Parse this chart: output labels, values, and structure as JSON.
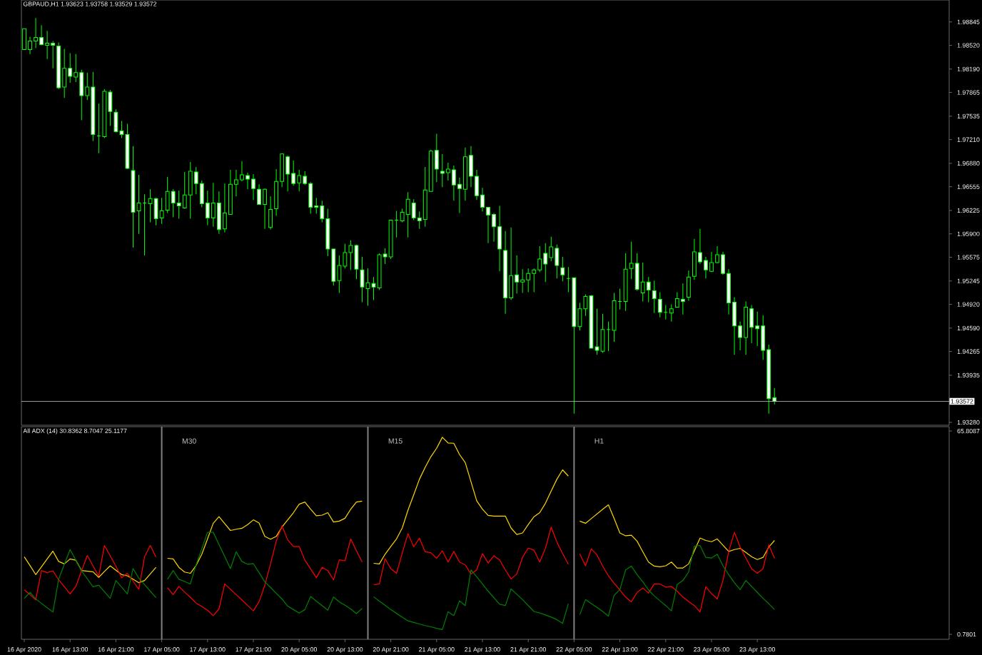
{
  "chart_data": [
    {
      "type": "candlestick",
      "title": "GBPAUD,H1  1.93623 1.93758 1.93529 1.93572",
      "color": "#00ff00",
      "categories": [
        null,
        null,
        null,
        null,
        null,
        null,
        null,
        null,
        null,
        null,
        null,
        null,
        null,
        null,
        null,
        null,
        null,
        null,
        null,
        null,
        null,
        null,
        null,
        null,
        null,
        null,
        null,
        null,
        null,
        null,
        null,
        null,
        null,
        null,
        null,
        null,
        null,
        null,
        null,
        null,
        null,
        null,
        null,
        null,
        null,
        null,
        null,
        null,
        null,
        null,
        null,
        null,
        null,
        null,
        null,
        null,
        null,
        null,
        null,
        null,
        null,
        null,
        null,
        null,
        null,
        null,
        null,
        null,
        null,
        null,
        null,
        null,
        null,
        null,
        null,
        null,
        null,
        null,
        null,
        null,
        null,
        null,
        null,
        null,
        null,
        null,
        null,
        null,
        null,
        null,
        null,
        null,
        null,
        null,
        null,
        null,
        null,
        null,
        null,
        null,
        null,
        null,
        null,
        null,
        null,
        null,
        null,
        null,
        null,
        null,
        null,
        null,
        null,
        null,
        null,
        null,
        null,
        null,
        null,
        null,
        null,
        null,
        null,
        null,
        null,
        null,
        null,
        null,
        null,
        null,
        null,
        null,
        null,
        null,
        null,
        null,
        null,
        null,
        null,
        null,
        null,
        null,
        null,
        null,
        null,
        null,
        null,
        null,
        null,
        null,
        null,
        null,
        null,
        null,
        null,
        null,
        null,
        null,
        null,
        null,
        null,
        null
      ],
      "ohlc": [
        [
          1.9846,
          1.9875,
          1.9846,
          1.9875
        ],
        [
          1.9846,
          1.9864,
          1.984,
          1.9858
        ],
        [
          1.9858,
          1.989,
          1.9848,
          1.9863
        ],
        [
          1.9863,
          1.988,
          1.9852,
          1.9853
        ],
        [
          1.9852,
          1.9872,
          1.9833,
          1.9855
        ],
        [
          1.9855,
          1.9858,
          1.982,
          1.9852
        ],
        [
          1.9851,
          1.9856,
          1.9791,
          1.9793
        ],
        [
          1.9794,
          1.9847,
          1.9779,
          1.982
        ],
        [
          1.982,
          1.9841,
          1.98,
          1.9809
        ],
        [
          1.9808,
          1.984,
          1.9801,
          1.9814
        ],
        [
          1.9814,
          1.9818,
          1.9748,
          1.9782
        ],
        [
          1.9782,
          1.9814,
          1.9776,
          1.9794
        ],
        [
          1.9794,
          1.9815,
          1.9719,
          1.9728
        ],
        [
          1.9726,
          1.9771,
          1.9702,
          1.9726
        ],
        [
          1.9725,
          1.9791,
          1.9723,
          1.9788
        ],
        [
          1.9787,
          1.979,
          1.974,
          1.976
        ],
        [
          1.9759,
          1.9763,
          1.9731,
          1.9732
        ],
        [
          1.9733,
          1.9747,
          1.9723,
          1.9728
        ],
        [
          1.9728,
          1.9743,
          1.968,
          1.9681
        ],
        [
          1.9678,
          1.9712,
          1.9571,
          1.962
        ],
        [
          1.9622,
          1.9672,
          1.959,
          1.9633
        ],
        [
          1.9633,
          1.9645,
          1.956,
          1.9633
        ],
        [
          1.9632,
          1.9652,
          1.9606,
          1.9639
        ],
        [
          1.9639,
          1.964,
          1.9602,
          1.9611
        ],
        [
          1.9612,
          1.964,
          1.9604,
          1.9622
        ],
        [
          1.9623,
          1.9669,
          1.9619,
          1.9649
        ],
        [
          1.9649,
          1.9652,
          1.9613,
          1.9633
        ],
        [
          1.9633,
          1.965,
          1.9611,
          1.9629
        ],
        [
          1.9626,
          1.9676,
          1.9625,
          1.9644
        ],
        [
          1.9644,
          1.969,
          1.9611,
          1.9677
        ],
        [
          1.9676,
          1.9683,
          1.9645,
          1.966
        ],
        [
          1.966,
          1.9664,
          1.9627,
          1.9632
        ],
        [
          1.9633,
          1.965,
          1.9602,
          1.9612
        ],
        [
          1.9612,
          1.9661,
          1.96,
          1.9633
        ],
        [
          1.9633,
          1.9649,
          1.959,
          1.9596
        ],
        [
          1.9597,
          1.966,
          1.9592,
          1.9619
        ],
        [
          1.9617,
          1.9679,
          1.9617,
          1.9659
        ],
        [
          1.9659,
          1.9679,
          1.9642,
          1.9665
        ],
        [
          1.9665,
          1.9691,
          1.9663,
          1.9672
        ],
        [
          1.9671,
          1.9675,
          1.9652,
          1.9666
        ],
        [
          1.9666,
          1.9673,
          1.9637,
          1.9653
        ],
        [
          1.9652,
          1.9659,
          1.9631,
          1.9631
        ],
        [
          1.9631,
          1.9653,
          1.9597,
          1.9652
        ],
        [
          1.9599,
          1.9642,
          1.9596,
          1.9624
        ],
        [
          1.9625,
          1.968,
          1.9615,
          1.9663
        ],
        [
          1.9663,
          1.9702,
          1.9655,
          1.9701
        ],
        [
          1.9697,
          1.9699,
          1.9649,
          1.9673
        ],
        [
          1.9674,
          1.9692,
          1.9657,
          1.966
        ],
        [
          1.9661,
          1.9679,
          1.9649,
          1.9671
        ],
        [
          1.967,
          1.9677,
          1.9658,
          1.966
        ],
        [
          1.966,
          1.9662,
          1.9618,
          1.9627
        ],
        [
          1.9629,
          1.964,
          1.9618,
          1.9627
        ],
        [
          1.9629,
          1.9636,
          1.9606,
          1.9611
        ],
        [
          1.9611,
          1.9625,
          1.9559,
          1.9569
        ],
        [
          1.9569,
          1.9569,
          1.9518,
          1.9524
        ],
        [
          1.9525,
          1.956,
          1.9508,
          1.9546
        ],
        [
          1.9545,
          1.9576,
          1.9542,
          1.9564
        ],
        [
          1.9564,
          1.9581,
          1.954,
          1.9574
        ],
        [
          1.9574,
          1.9575,
          1.9527,
          1.9541
        ],
        [
          1.954,
          1.9558,
          1.9495,
          1.9516
        ],
        [
          1.9514,
          1.9542,
          1.949,
          1.9522
        ],
        [
          1.9521,
          1.953,
          1.9498,
          1.9516
        ],
        [
          1.9515,
          1.9563,
          1.9512,
          1.9561
        ],
        [
          1.9562,
          1.957,
          1.9548,
          1.9558
        ],
        [
          1.9558,
          1.9609,
          1.9555,
          1.9609
        ],
        [
          1.9609,
          1.9622,
          1.9585,
          1.9609
        ],
        [
          1.9608,
          1.9625,
          1.9606,
          1.962
        ],
        [
          1.9617,
          1.9648,
          1.9585,
          1.9638
        ],
        [
          1.9633,
          1.9638,
          1.9609,
          1.9612
        ],
        [
          1.9612,
          1.9621,
          1.9597,
          1.9608
        ],
        [
          1.961,
          1.9683,
          1.96,
          1.9651
        ],
        [
          1.9649,
          1.9707,
          1.9649,
          1.9705
        ],
        [
          1.9706,
          1.9729,
          1.9662,
          1.968
        ],
        [
          1.9677,
          1.9701,
          1.9655,
          1.9674
        ],
        [
          1.9675,
          1.9689,
          1.9664,
          1.968
        ],
        [
          1.9679,
          1.9685,
          1.9636,
          1.9658
        ],
        [
          1.9659,
          1.9668,
          1.9619,
          1.9653
        ],
        [
          1.9652,
          1.971,
          1.9636,
          1.9697
        ],
        [
          1.9699,
          1.9712,
          1.9655,
          1.967
        ],
        [
          1.967,
          1.9679,
          1.9637,
          1.9643
        ],
        [
          1.9644,
          1.9654,
          1.9621,
          1.9627
        ],
        [
          1.9627,
          1.9627,
          1.9577,
          1.9616
        ],
        [
          1.9617,
          1.9619,
          1.9579,
          1.96
        ],
        [
          1.96,
          1.9629,
          1.9538,
          1.9569
        ],
        [
          1.9567,
          1.9594,
          1.9479,
          1.9501
        ],
        [
          1.9501,
          1.9599,
          1.9498,
          1.9532
        ],
        [
          1.9533,
          1.956,
          1.9507,
          1.9523
        ],
        [
          1.9523,
          1.9541,
          1.9508,
          1.9526
        ],
        [
          1.9526,
          1.9542,
          1.9509,
          1.9535
        ],
        [
          1.9535,
          1.9542,
          1.9509,
          1.954
        ],
        [
          1.954,
          1.9573,
          1.9537,
          1.9555
        ],
        [
          1.9563,
          1.9577,
          1.9523,
          1.9548
        ],
        [
          1.9557,
          1.9586,
          1.9552,
          1.9572
        ],
        [
          1.957,
          1.9575,
          1.9528,
          1.9546
        ],
        [
          1.9543,
          1.9558,
          1.9524,
          1.9533
        ],
        [
          1.9528,
          1.9544,
          1.9509,
          1.9528
        ],
        [
          1.9529,
          1.9529,
          1.934,
          1.9461
        ],
        [
          1.9461,
          1.9494,
          1.9456,
          1.9486
        ],
        [
          1.9486,
          1.9506,
          1.9476,
          1.9503
        ],
        [
          1.9504,
          1.9505,
          1.9431,
          1.9431
        ],
        [
          1.9433,
          1.9486,
          1.9422,
          1.9428
        ],
        [
          1.9427,
          1.9479,
          1.9425,
          1.9457
        ],
        [
          1.9457,
          1.9468,
          1.9427,
          1.9457
        ],
        [
          1.9456,
          1.9508,
          1.944,
          1.9497
        ],
        [
          1.9496,
          1.9514,
          1.9485,
          1.9496
        ],
        [
          1.9496,
          1.9563,
          1.9483,
          1.9541
        ],
        [
          1.9542,
          1.9579,
          1.9527,
          1.9549
        ],
        [
          1.9549,
          1.9563,
          1.9511,
          1.9513
        ],
        [
          1.9508,
          1.955,
          1.9496,
          1.9523
        ],
        [
          1.9523,
          1.953,
          1.9495,
          1.9512
        ],
        [
          1.9511,
          1.9525,
          1.948,
          1.95
        ],
        [
          1.9499,
          1.9509,
          1.9474,
          1.9481
        ],
        [
          1.9481,
          1.9491,
          1.9471,
          1.9481
        ],
        [
          1.948,
          1.9492,
          1.9468,
          1.9486
        ],
        [
          1.9488,
          1.9509,
          1.9488,
          1.95
        ],
        [
          1.9499,
          1.9521,
          1.9478,
          1.9496
        ],
        [
          1.9502,
          1.9539,
          1.9497,
          1.953
        ],
        [
          1.9531,
          1.9583,
          1.9526,
          1.9565
        ],
        [
          1.9564,
          1.9597,
          1.9548,
          1.9551
        ],
        [
          1.9553,
          1.9558,
          1.9528,
          1.954
        ],
        [
          1.9538,
          1.9565,
          1.9537,
          1.955
        ],
        [
          1.955,
          1.9573,
          1.9549,
          1.9561
        ],
        [
          1.9561,
          1.9565,
          1.9533,
          1.9535
        ],
        [
          1.9535,
          1.9541,
          1.9478,
          1.9494
        ],
        [
          1.9495,
          1.9502,
          1.9422,
          1.9462
        ],
        [
          1.9462,
          1.9468,
          1.9428,
          1.9446
        ],
        [
          1.9446,
          1.9496,
          1.9422,
          1.9488
        ],
        [
          1.9486,
          1.9491,
          1.9438,
          1.946
        ],
        [
          1.9462,
          1.9482,
          1.9434,
          1.9458
        ],
        [
          1.9462,
          1.9477,
          1.9415,
          1.9428
        ],
        [
          1.9429,
          1.9436,
          1.934,
          1.9361
        ],
        [
          1.93623,
          1.93758,
          1.93529,
          1.93572
        ],
        null,
        null,
        null,
        null,
        null,
        null,
        null,
        null,
        null,
        null,
        null,
        null,
        null,
        null,
        null,
        null,
        null,
        null,
        null,
        null,
        null,
        null,
        null,
        null,
        null,
        null,
        null,
        null,
        null,
        null
      ],
      "ylim": [
        1.9324,
        1.9915
      ],
      "yticks": [
        {
          "value": 1.98845,
          "label": "1.98845"
        },
        {
          "value": 1.9852,
          "label": "1.98520"
        },
        {
          "value": 1.9819,
          "label": "1.98190"
        },
        {
          "value": 1.97865,
          "label": "1.97865"
        },
        {
          "value": 1.97535,
          "label": "1.97535"
        },
        {
          "value": 1.9721,
          "label": "1.97210"
        },
        {
          "value": 1.9688,
          "label": "1.96880"
        },
        {
          "value": 1.96555,
          "label": "1.96555"
        },
        {
          "value": 1.96225,
          "label": "1.96225"
        },
        {
          "value": 1.959,
          "label": "1.95900"
        },
        {
          "value": 1.95575,
          "label": "1.95575"
        },
        {
          "value": 1.95245,
          "label": "1.95245"
        },
        {
          "value": 1.9492,
          "label": "1.94920"
        },
        {
          "value": 1.9459,
          "label": "1.94590"
        },
        {
          "value": 1.94265,
          "label": "1.94265"
        },
        {
          "value": 1.93935,
          "label": "1.93935"
        },
        {
          "value": 1.9328,
          "label": "1.93280"
        }
      ],
      "ref_lines": [
        {
          "axis": "y",
          "value": 1.93572,
          "label": "1.93572",
          "color": "#c0c0c0"
        }
      ]
    },
    {
      "type": "line",
      "title": "All ADX (14) 30.8362 8.7047 25.1177",
      "categories": [
        "16 Apr 2020",
        null,
        null,
        null,
        null,
        null,
        null,
        null,
        "16 Apr 13:00",
        null,
        null,
        null,
        null,
        null,
        null,
        null,
        "16 Apr 21:00",
        null,
        null,
        null,
        null,
        null,
        null,
        null,
        "17 Apr 05:00",
        null,
        null,
        null,
        null,
        null,
        null,
        null,
        "17 Apr 13:00",
        null,
        null,
        null,
        null,
        null,
        null,
        null,
        "17 Apr 21:00",
        null,
        null,
        null,
        null,
        null,
        null,
        null,
        "20 Apr 05:00",
        null,
        null,
        null,
        null,
        null,
        null,
        null,
        "20 Apr 13:00",
        null,
        null,
        null,
        null,
        null,
        null,
        null,
        "20 Apr 21:00",
        null,
        null,
        null,
        null,
        null,
        null,
        null,
        "21 Apr 05:00",
        null,
        null,
        null,
        null,
        null,
        null,
        null,
        "21 Apr 13:00",
        null,
        null,
        null,
        null,
        null,
        null,
        null,
        "21 Apr 21:00",
        null,
        null,
        null,
        null,
        null,
        null,
        null,
        "22 Apr 05:00",
        null,
        null,
        null,
        null,
        null,
        null,
        null,
        "22 Apr 13:00",
        null,
        null,
        null,
        null,
        null,
        null,
        null,
        "22 Apr 21:00",
        null,
        null,
        null,
        null,
        null,
        null,
        null,
        "23 Apr 05:00",
        null,
        null,
        null,
        null,
        null,
        null,
        null,
        "23 Apr 13:00",
        null,
        null,
        null,
        null,
        null,
        null,
        null,
        null,
        null,
        null,
        null,
        null,
        null,
        null,
        null,
        null,
        null,
        null,
        null,
        null,
        null,
        null,
        null,
        null,
        null,
        null,
        null,
        null,
        null,
        null,
        null,
        null,
        null
      ],
      "series": [
        {
          "color": "#ffd700",
          "values": [
            25.6,
            22.8,
            19.9,
            22.4,
            24.9,
            27.4,
            24.1,
            23.3,
            24.9,
            24.5,
            21.2,
            21.0,
            20.8,
            19.0,
            20.9,
            22.7,
            21.3,
            19.9,
            19.5,
            18.4,
            17.3,
            18.0,
            20.1,
            22.2,
            null,
            25.1,
            24.9,
            22.2,
            20.7,
            20.3,
            22.8,
            26.4,
            31.3,
            36.3,
            38.4,
            36.2,
            34.0,
            34.4,
            34.7,
            35.9,
            37.4,
            36.4,
            32.1,
            31.2,
            32.1,
            35.1,
            37.4,
            39.7,
            42.4,
            43.1,
            40.8,
            38.7,
            38.9,
            39.7,
            36.7,
            37.0,
            37.9,
            40.8,
            43.1,
            43.4,
            null,
            23.5,
            23.3,
            26.4,
            28.9,
            31.3,
            34.8,
            40.5,
            45.4,
            50.4,
            54.2,
            57.6,
            60.3,
            63.8,
            62.0,
            61.9,
            58.3,
            55.7,
            49.6,
            43.5,
            40.8,
            38.8,
            38.6,
            38.6,
            38.6,
            34.8,
            32.7,
            33.2,
            35.9,
            38.4,
            39.7,
            42.7,
            46.6,
            50.4,
            53.4,
            51.4,
            null,
            37.0,
            36.3,
            37.8,
            39.3,
            40.8,
            42.2,
            37.8,
            33.2,
            32.3,
            32.5,
            30.6,
            27.2,
            23.9,
            22.6,
            22.4,
            22.7,
            23.9,
            22.0,
            22.0,
            23.3,
            27.5,
            31.6,
            30.8,
            30.4,
            31.3,
            29.3,
            27.3,
            27.9,
            28.3,
            27.0,
            25.6,
            24.7,
            25.4,
            28.7,
            30.8,
            null,
            null,
            null,
            null,
            null,
            null,
            null,
            null,
            null,
            null,
            null,
            null,
            null,
            null,
            null,
            null,
            null,
            null,
            null,
            null,
            null,
            null,
            null,
            null,
            null,
            null,
            null,
            null,
            null,
            null
          ]
        },
        {
          "color": "#ff0000",
          "values": [
            15.0,
            13.5,
            11.8,
            21.2,
            20.5,
            21.1,
            18.2,
            16.0,
            13.7,
            16.1,
            21.1,
            26.0,
            22.7,
            19.4,
            29.2,
            25.9,
            22.6,
            18.9,
            20.3,
            17.8,
            15.2,
            25.6,
            29.2,
            25.5,
            null,
            15.7,
            13.5,
            16.1,
            14.3,
            12.6,
            10.8,
            9.7,
            8.5,
            6.8,
            8.9,
            16.9,
            15.2,
            13.5,
            11.8,
            10.0,
            8.3,
            11.2,
            16.5,
            23.3,
            30.6,
            35.5,
            31.0,
            28.9,
            28.9,
            24.5,
            21.7,
            18.9,
            22.2,
            21.2,
            18.2,
            24.6,
            24.3,
            31.3,
            27.5,
            23.9,
            null,
            16.6,
            16.9,
            25.0,
            21.8,
            20.3,
            26.8,
            33.0,
            28.8,
            31.5,
            27.2,
            26.9,
            25.1,
            27.5,
            23.9,
            27.3,
            23.9,
            23.0,
            20.1,
            21.4,
            26.6,
            23.6,
            25.9,
            24.6,
            21.4,
            18.5,
            20.1,
            25.4,
            28.4,
            27.7,
            23.9,
            28.3,
            35.1,
            30.3,
            26.6,
            23.2,
            null,
            26.5,
            22.7,
            28.1,
            26.2,
            22.6,
            19.5,
            17.1,
            15.0,
            12.7,
            11.2,
            14.2,
            15.6,
            14.0,
            16.9,
            16.9,
            15.9,
            16.1,
            14.6,
            12.7,
            11.3,
            10.0,
            7.9,
            16.0,
            13.8,
            12.1,
            18.0,
            27.3,
            33.4,
            28.7,
            25.2,
            21.8,
            20.3,
            21.8,
            29.4,
            25.1,
            null,
            null,
            null,
            null,
            null,
            null,
            null,
            null,
            null,
            null,
            null,
            null,
            null,
            null,
            null,
            null,
            null,
            null,
            null,
            null,
            null,
            null,
            null,
            null,
            null,
            null,
            null,
            null,
            null,
            null
          ]
        },
        {
          "color": "#008000",
          "values": [
            12.3,
            14.2,
            12.1,
            10.7,
            9.3,
            7.9,
            18.4,
            23.2,
            27.9,
            24.5,
            21.1,
            18.6,
            16.0,
            16.5,
            14.4,
            12.3,
            18.0,
            15.9,
            13.7,
            21.8,
            18.8,
            16.7,
            14.6,
            12.5,
            null,
            18.4,
            21.2,
            18.4,
            17.7,
            16.9,
            23.0,
            28.2,
            33.4,
            33.4,
            29.5,
            25.7,
            21.8,
            27.2,
            24.1,
            23.2,
            23.4,
            20.5,
            17.6,
            15.8,
            13.9,
            12.1,
            9.8,
            8.7,
            7.6,
            8.7,
            12.9,
            11.4,
            10.0,
            8.5,
            12.7,
            11.2,
            10.1,
            8.9,
            7.4,
            9.1,
            null,
            12.8,
            11.4,
            10.1,
            8.7,
            7.5,
            6.3,
            5.1,
            4.6,
            4.1,
            3.6,
            3.2,
            2.7,
            2.3,
            8.0,
            6.8,
            11.5,
            10.0,
            21.4,
            19.2,
            16.9,
            14.6,
            12.5,
            10.4,
            10.0,
            15.3,
            13.6,
            11.9,
            10.0,
            8.1,
            7.6,
            7.0,
            6.3,
            5.5,
            4.3,
            10.6,
            null,
            7.1,
            11.9,
            10.6,
            9.4,
            8.1,
            6.6,
            13.3,
            15.1,
            21.4,
            22.6,
            19.9,
            17.6,
            15.0,
            13.1,
            11.5,
            10.0,
            8.3,
            16.7,
            18.0,
            20.7,
            29.0,
            29.2,
            25.4,
            25.2,
            26.4,
            22.7,
            19.9,
            17.3,
            15.1,
            18.0,
            16.1,
            14.2,
            12.3,
            10.6,
            8.7,
            null,
            null,
            null,
            null,
            null,
            null,
            null,
            null,
            null,
            null,
            null,
            null,
            null,
            null,
            null,
            null,
            null,
            null,
            null,
            null,
            null,
            null,
            null,
            null,
            null,
            null,
            null,
            null,
            null,
            null
          ]
        }
      ],
      "ylim": [
        -0.8,
        67.2
      ],
      "yticks": [
        65.8087,
        0.7801
      ],
      "annotations": [
        "M30",
        "M15",
        "H1"
      ]
    }
  ]
}
